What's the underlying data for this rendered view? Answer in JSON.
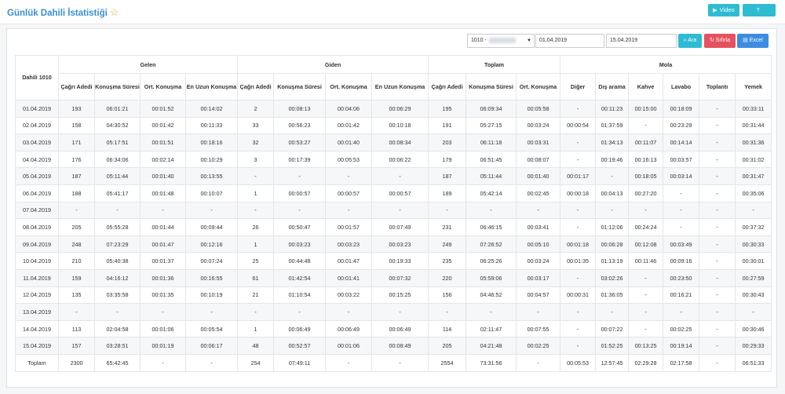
{
  "page": {
    "title": "Günlük Dahili İstatistiği",
    "buttons": {
      "video": "Video",
      "help": "Yardım"
    }
  },
  "filters": {
    "extension_select": "1010 -",
    "date_from": "01.04.2019",
    "date_to": "15.04.2019",
    "search_button": "Ara",
    "reset_button": "Sıfırla",
    "excel_button": "Excel"
  },
  "table": {
    "corner_header": "Dahili 1010",
    "groups": [
      "Gelen",
      "Giden",
      "Toplam",
      "Mola"
    ],
    "subheaders": [
      "Çağrı Adedi",
      "Konuşma Süresi",
      "Ort. Konuşma",
      "En Uzun Konuşma",
      "Çağrı Adedi",
      "Konuşma Süresi",
      "Ort. Konuşma",
      "En Uzun Konuşma",
      "Çağrı Adedi",
      "Konuşma Süresi",
      "Ort. Konuşma",
      "Diğer",
      "Dış arama",
      "Kahve",
      "Lavabo",
      "Toplantı",
      "Yemek"
    ],
    "rows": [
      [
        "01.04.2019",
        "193",
        "06:01:21",
        "00:01:52",
        "00:14:02",
        "2",
        "00:08:13",
        "00:04:06",
        "00:06:29",
        "195",
        "06:09:34",
        "00:05:58",
        "-",
        "00:11:23",
        "00:15:00",
        "00:18:09",
        "-",
        "00:33:11"
      ],
      [
        "02.04.2019",
        "158",
        "04:30:52",
        "00:01:42",
        "00:11:33",
        "33",
        "00:56:23",
        "00:01:42",
        "00:10:18",
        "191",
        "05:27:15",
        "00:03:24",
        "00:00:54",
        "01:37:59",
        "-",
        "00:23:29",
        "-",
        "00:31:44"
      ],
      [
        "03.04.2019",
        "171",
        "05:17:51",
        "00:01:51",
        "00:18:16",
        "32",
        "00:53:27",
        "00:01:40",
        "00:08:34",
        "203",
        "06:11:18",
        "00:03:31",
        "-",
        "01:34:13",
        "00:11:07",
        "00:14:14",
        "-",
        "00:31:36"
      ],
      [
        "04.04.2019",
        "176",
        "06:34:06",
        "00:02:14",
        "00:10:29",
        "3",
        "00:17:39",
        "00:05:53",
        "00:06:22",
        "179",
        "06:51:45",
        "00:08:07",
        "-",
        "00:19:46",
        "00:16:13",
        "00:03:57",
        "-",
        "00:31:02"
      ],
      [
        "05.04.2019",
        "187",
        "05:11:44",
        "00:01:40",
        "00:13:55",
        "-",
        "-",
        "-",
        "-",
        "187",
        "05:11:44",
        "00:01:40",
        "00:01:17",
        "-",
        "00:18:05",
        "00:03:14",
        "-",
        "00:31:47"
      ],
      [
        "06.04.2019",
        "188",
        "05:41:17",
        "00:01:48",
        "00:10:07",
        "1",
        "00:00:57",
        "00:00:57",
        "00:00:57",
        "189",
        "05:42:14",
        "00:02:45",
        "00:00:18",
        "00:04:13",
        "00:27:20",
        "-",
        "-",
        "00:35:06"
      ],
      [
        "07.04.2019",
        "-",
        "-",
        "-",
        "-",
        "-",
        "-",
        "-",
        "-",
        "-",
        "-",
        "-",
        "-",
        "-",
        "-",
        "-",
        "-",
        "-"
      ],
      [
        "08.04.2019",
        "205",
        "05:55:28",
        "00:01:44",
        "00:09:44",
        "26",
        "00:50:47",
        "00:01:57",
        "00:07:49",
        "231",
        "06:46:15",
        "00:03:41",
        "-",
        "01:12:06",
        "00:24:24",
        "-",
        "-",
        "00:37:32"
      ],
      [
        "09.04.2019",
        "248",
        "07:23:29",
        "00:01:47",
        "00:12:16",
        "1",
        "00:03:23",
        "00:03:23",
        "00:03:23",
        "249",
        "07:26:52",
        "00:05:10",
        "00:01:18",
        "00:06:28",
        "00:12:08",
        "00:03:49",
        "-",
        "00:30:33"
      ],
      [
        "10.04.2019",
        "210",
        "05:40:38",
        "00:01:37",
        "00:07:24",
        "25",
        "00:44:48",
        "00:01:47",
        "00:19:33",
        "235",
        "06:25:26",
        "00:03:24",
        "00:01:35",
        "01:13:19",
        "00:11:46",
        "00:09:16",
        "-",
        "00:30:01"
      ],
      [
        "11.04.2019",
        "159",
        "04:16:12",
        "00:01:36",
        "00:16:55",
        "61",
        "01:42:54",
        "00:01:41",
        "00:07:32",
        "220",
        "05:59:06",
        "00:03:17",
        "-",
        "03:02:26",
        "-",
        "00:23:50",
        "-",
        "00:27:59"
      ],
      [
        "12.04.2019",
        "135",
        "03:35:58",
        "00:01:35",
        "00:10:19",
        "21",
        "01:10:54",
        "00:03:22",
        "00:15:25",
        "156",
        "04:46:52",
        "00:04:57",
        "00:00:31",
        "01:36:05",
        "-",
        "00:16:21",
        "-",
        "00:30:43"
      ],
      [
        "13.04.2019",
        "-",
        "-",
        "-",
        "-",
        "-",
        "-",
        "-",
        "-",
        "-",
        "-",
        "-",
        "-",
        "-",
        "-",
        "-",
        "-",
        "-"
      ],
      [
        "14.04.2019",
        "113",
        "02:04:58",
        "00:01:06",
        "00:05:54",
        "1",
        "00:06:49",
        "00:06:49",
        "00:06:49",
        "114",
        "02:11:47",
        "00:07:55",
        "-",
        "00:07:22",
        "-",
        "00:02:25",
        "-",
        "00:30:46"
      ],
      [
        "15.04.2019",
        "157",
        "03:28:51",
        "00:01:19",
        "00:06:17",
        "48",
        "00:52:57",
        "00:01:06",
        "00:08:49",
        "205",
        "04:21:48",
        "00:02:25",
        "-",
        "01:52:25",
        "00:13:25",
        "00:19:14",
        "-",
        "00:29:33"
      ],
      [
        "Toplam",
        "2300",
        "65:42:45",
        "-",
        "-",
        "254",
        "07:49:11",
        "-",
        "-",
        "2554",
        "73:31:56",
        "-",
        "00:05:53",
        "12:57:45",
        "02:29:28",
        "02:17:58",
        "-",
        "06:51:33"
      ]
    ]
  },
  "colors": {
    "title": "#3a8fd6",
    "cyan": "#2fbcd3",
    "red": "#e65160",
    "blue": "#3b8de0",
    "star": "#f0ad1e"
  },
  "icons": {
    "star": "star-icon",
    "video": "video-icon",
    "help": "question-icon",
    "search": "search-icon",
    "reset": "refresh-icon",
    "excel": "file-icon"
  }
}
